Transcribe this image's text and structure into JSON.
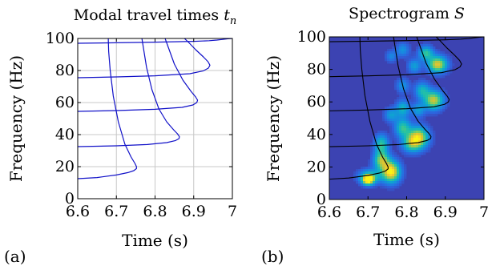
{
  "chart_data": [
    {
      "type": "line",
      "panel_label": "(a)",
      "title": "Modal travel times",
      "title_math": "t",
      "title_sub": "n",
      "xlabel": "Time (s)",
      "ylabel": "Frequency (Hz)",
      "xlim": [
        6.6,
        7.0
      ],
      "ylim": [
        0,
        100
      ],
      "xticks": [
        6.6,
        6.7,
        6.8,
        6.9,
        7.0
      ],
      "xtick_labels": [
        "6.6",
        "6.7",
        "6.8",
        "6.9",
        "7"
      ],
      "yticks": [
        0,
        20,
        40,
        60,
        80,
        100
      ],
      "ytick_labels": [
        "0",
        "20",
        "40",
        "60",
        "80",
        "100"
      ],
      "grid": true,
      "line_color": "#1010c8",
      "series": [
        {
          "x": [
            6.6,
            6.65,
            6.7,
            6.73,
            6.745,
            6.752,
            6.752,
            6.748,
            6.738,
            6.722,
            6.705,
            6.692,
            6.684,
            6.68,
            6.679
          ],
          "y": [
            12.5,
            13.2,
            14.8,
            16.3,
            17.5,
            18.8,
            20.0,
            22.0,
            26.0,
            34.0,
            48.0,
            64.0,
            80.0,
            92.0,
            100.0
          ]
        },
        {
          "x": [
            6.6,
            6.7,
            6.78,
            6.83,
            6.853,
            6.862,
            6.863,
            6.858,
            6.848,
            6.83,
            6.81,
            6.792,
            6.778,
            6.77,
            6.766
          ],
          "y": [
            32.5,
            33.0,
            33.8,
            35.0,
            36.3,
            37.5,
            38.7,
            40.5,
            43.0,
            48.0,
            56.0,
            68.0,
            82.0,
            94.0,
            100.0
          ]
        },
        {
          "x": [
            6.6,
            6.7,
            6.8,
            6.87,
            6.898,
            6.908,
            6.91,
            6.905,
            6.893,
            6.872,
            6.85,
            6.835,
            6.826
          ],
          "y": [
            54.5,
            55.0,
            55.8,
            57.0,
            58.5,
            60.0,
            61.5,
            63.5,
            67.0,
            74.0,
            84.0,
            94.0,
            100.0
          ]
        },
        {
          "x": [
            6.6,
            6.7,
            6.8,
            6.89,
            6.925,
            6.938,
            6.942,
            6.937,
            6.925,
            6.905,
            6.887,
            6.876
          ],
          "y": [
            75.5,
            76.0,
            76.7,
            78.0,
            79.8,
            81.5,
            83.3,
            85.5,
            88.5,
            93.0,
            97.5,
            100.0
          ]
        },
        {
          "x": [
            6.6,
            6.7,
            6.8,
            6.9,
            6.94,
            6.96,
            6.975,
            6.988,
            7.0
          ],
          "y": [
            97.0,
            97.3,
            97.7,
            98.2,
            98.6,
            99.0,
            99.4,
            99.8,
            100.0
          ]
        }
      ]
    },
    {
      "type": "heatmap",
      "panel_label": "(b)",
      "title": "Spectrogram",
      "title_math": "S",
      "xlabel": "Time (s)",
      "ylabel": "Frequency (Hz)",
      "xlim": [
        6.6,
        7.0
      ],
      "ylim": [
        0,
        100
      ],
      "xticks": [
        6.6,
        6.7,
        6.8,
        6.9,
        7.0
      ],
      "xtick_labels": [
        "6.6",
        "6.7",
        "6.8",
        "6.9",
        "7"
      ],
      "yticks": [
        0,
        20,
        40,
        60,
        80,
        100
      ],
      "ytick_labels": [
        "0",
        "20",
        "40",
        "60",
        "80",
        "100"
      ],
      "grid": false,
      "colormap": "parula",
      "background_color": "#3c43b2",
      "overlay_line_color": "#000000",
      "blobs": [
        {
          "t": 6.76,
          "f": 17,
          "st": 0.016,
          "sf": 4.5,
          "a": 1.0
        },
        {
          "t": 6.735,
          "f": 24,
          "st": 0.014,
          "sf": 4.0,
          "a": 0.7
        },
        {
          "t": 6.705,
          "f": 14,
          "st": 0.02,
          "sf": 3.0,
          "a": 0.55
        },
        {
          "t": 6.7,
          "f": 12,
          "st": 0.01,
          "sf": 2.0,
          "a": 0.95
        },
        {
          "t": 6.735,
          "f": 34,
          "st": 0.012,
          "sf": 4.0,
          "a": 0.55
        },
        {
          "t": 6.83,
          "f": 38,
          "st": 0.018,
          "sf": 4.5,
          "a": 0.9
        },
        {
          "t": 6.79,
          "f": 44,
          "st": 0.014,
          "sf": 4.0,
          "a": 0.55
        },
        {
          "t": 6.81,
          "f": 34,
          "st": 0.016,
          "sf": 3.5,
          "a": 0.45
        },
        {
          "t": 6.79,
          "f": 56,
          "st": 0.012,
          "sf": 3.5,
          "a": 0.45
        },
        {
          "t": 6.76,
          "f": 52,
          "st": 0.012,
          "sf": 3.0,
          "a": 0.35
        },
        {
          "t": 6.87,
          "f": 61,
          "st": 0.017,
          "sf": 4.0,
          "a": 0.8
        },
        {
          "t": 6.84,
          "f": 67,
          "st": 0.013,
          "sf": 3.5,
          "a": 0.45
        },
        {
          "t": 6.83,
          "f": 55,
          "st": 0.012,
          "sf": 3.0,
          "a": 0.35
        },
        {
          "t": 6.79,
          "f": 70,
          "st": 0.012,
          "sf": 3.0,
          "a": 0.3
        },
        {
          "t": 6.88,
          "f": 83,
          "st": 0.017,
          "sf": 3.5,
          "a": 0.85
        },
        {
          "t": 6.85,
          "f": 90,
          "st": 0.013,
          "sf": 3.0,
          "a": 0.55
        },
        {
          "t": 6.82,
          "f": 82,
          "st": 0.012,
          "sf": 3.0,
          "a": 0.35
        },
        {
          "t": 6.79,
          "f": 92,
          "st": 0.012,
          "sf": 3.0,
          "a": 0.3
        },
        {
          "t": 6.76,
          "f": 88,
          "st": 0.01,
          "sf": 2.5,
          "a": 0.25
        }
      ],
      "overlay_series": [
        {
          "x": [
            6.6,
            6.65,
            6.7,
            6.73,
            6.745,
            6.752,
            6.752,
            6.748,
            6.738,
            6.722,
            6.705,
            6.692,
            6.684,
            6.68,
            6.679
          ],
          "y": [
            12.5,
            13.2,
            14.8,
            16.3,
            17.5,
            18.8,
            20.0,
            22.0,
            26.0,
            34.0,
            48.0,
            64.0,
            80.0,
            92.0,
            100.0
          ]
        },
        {
          "x": [
            6.6,
            6.7,
            6.78,
            6.83,
            6.853,
            6.862,
            6.863,
            6.858,
            6.848,
            6.83,
            6.81,
            6.792,
            6.778,
            6.77,
            6.766
          ],
          "y": [
            32.5,
            33.0,
            33.8,
            35.0,
            36.3,
            37.5,
            38.7,
            40.5,
            43.0,
            48.0,
            56.0,
            68.0,
            82.0,
            94.0,
            100.0
          ]
        },
        {
          "x": [
            6.6,
            6.7,
            6.8,
            6.87,
            6.898,
            6.908,
            6.91,
            6.905,
            6.893,
            6.872,
            6.85,
            6.835,
            6.826
          ],
          "y": [
            54.5,
            55.0,
            55.8,
            57.0,
            58.5,
            60.0,
            61.5,
            63.5,
            67.0,
            74.0,
            84.0,
            94.0,
            100.0
          ]
        },
        {
          "x": [
            6.6,
            6.7,
            6.8,
            6.89,
            6.925,
            6.938,
            6.942,
            6.937,
            6.925,
            6.905,
            6.887,
            6.876
          ],
          "y": [
            75.5,
            76.0,
            76.7,
            78.0,
            79.8,
            81.5,
            83.3,
            85.5,
            88.5,
            93.0,
            97.5,
            100.0
          ]
        },
        {
          "x": [
            6.6,
            6.7,
            6.8,
            6.9,
            6.94,
            6.96,
            6.975,
            6.988,
            7.0
          ],
          "y": [
            97.0,
            97.3,
            97.7,
            98.2,
            98.6,
            99.0,
            99.4,
            99.8,
            100.0
          ]
        }
      ]
    }
  ]
}
